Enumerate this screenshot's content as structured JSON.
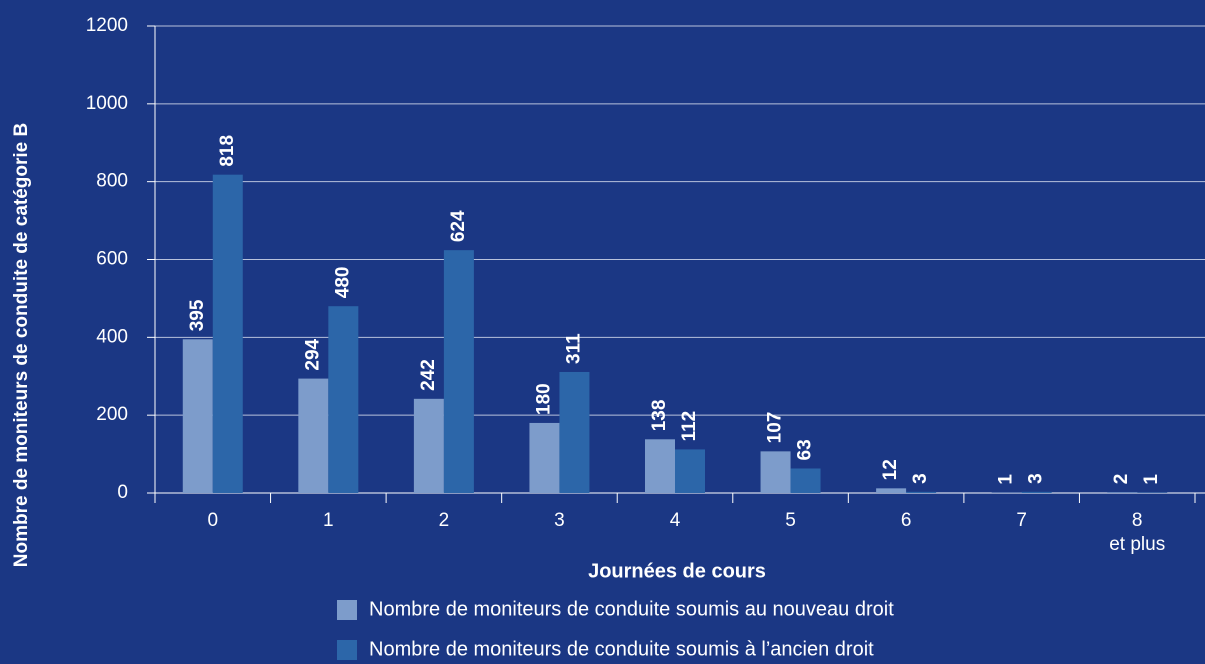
{
  "chart_data": {
    "type": "bar",
    "x_label": "Journées de cours",
    "y_label": "Nombre de moniteurs de conduite de catégorie B",
    "categories": [
      "0",
      "1",
      "2",
      "3",
      "4",
      "5",
      "6",
      "7",
      "8\net plus"
    ],
    "series": [
      {
        "name": "Nombre de moniteurs de conduite soumis au nouveau droit",
        "color": "#7d9ccb",
        "values": [
          395,
          294,
          242,
          180,
          138,
          107,
          12,
          1,
          2
        ]
      },
      {
        "name": "Nombre de moniteurs de conduite soumis à l’ancien droit",
        "color": "#2c66a9",
        "values": [
          818,
          480,
          624,
          311,
          112,
          63,
          3,
          3,
          1
        ]
      }
    ],
    "ylim": [
      0,
      1200
    ],
    "yticks": [
      0,
      200,
      400,
      600,
      800,
      1000,
      1200
    ],
    "grid": true
  }
}
